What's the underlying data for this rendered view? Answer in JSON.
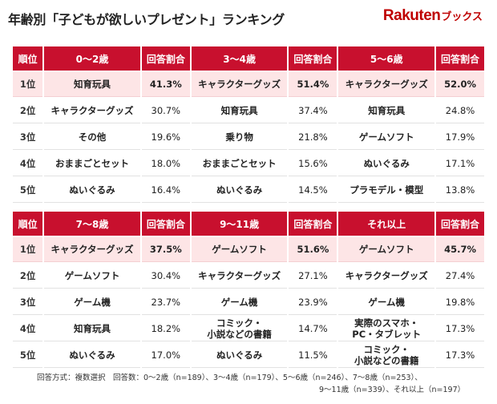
{
  "title": "年齢別「子どもが欲しいプレゼント」ランキング",
  "logo": {
    "brand": "Rakuten",
    "sub": "ブックス"
  },
  "colors": {
    "header_bg": "#c8102e",
    "highlight_row": "#fde5e6",
    "brand": "#bf0000"
  },
  "chart_data": [
    {
      "type": "table",
      "rank_header": "順位",
      "ranks": [
        "1位",
        "2位",
        "3位",
        "4位",
        "5位"
      ],
      "groups": [
        {
          "name": "0〜2歳",
          "share_header": "回答割合",
          "items": [
            {
              "item": "知育玩具",
              "share": "41.3%"
            },
            {
              "item": "キャラクターグッズ",
              "share": "30.7%"
            },
            {
              "item": "その他",
              "share": "19.6%"
            },
            {
              "item": "おままごとセット",
              "share": "18.0%"
            },
            {
              "item": "ぬいぐるみ",
              "share": "16.4%"
            }
          ]
        },
        {
          "name": "3〜4歳",
          "share_header": "回答割合",
          "items": [
            {
              "item": "キャラクターグッズ",
              "share": "51.4%"
            },
            {
              "item": "知育玩具",
              "share": "37.4%"
            },
            {
              "item": "乗り物",
              "share": "21.8%"
            },
            {
              "item": "おままごとセット",
              "share": "15.6%"
            },
            {
              "item": "ぬいぐるみ",
              "share": "14.5%"
            }
          ]
        },
        {
          "name": "5〜6歳",
          "share_header": "回答割合",
          "items": [
            {
              "item": "キャラクターグッズ",
              "share": "52.0%"
            },
            {
              "item": "知育玩具",
              "share": "24.8%"
            },
            {
              "item": "ゲームソフト",
              "share": "17.9%"
            },
            {
              "item": "ぬいぐるみ",
              "share": "17.1%"
            },
            {
              "item": "プラモデル・模型",
              "share": "13.8%"
            }
          ]
        }
      ]
    },
    {
      "type": "table",
      "rank_header": "順位",
      "ranks": [
        "1位",
        "2位",
        "3位",
        "4位",
        "5位"
      ],
      "groups": [
        {
          "name": "7〜8歳",
          "share_header": "回答割合",
          "items": [
            {
              "item": "キャラクターグッズ",
              "share": "37.5%"
            },
            {
              "item": "ゲームソフト",
              "share": "30.4%"
            },
            {
              "item": "ゲーム機",
              "share": "23.7%"
            },
            {
              "item": "知育玩具",
              "share": "18.2%"
            },
            {
              "item": "ぬいぐるみ",
              "share": "17.0%"
            }
          ]
        },
        {
          "name": "9〜11歳",
          "share_header": "回答割合",
          "items": [
            {
              "item": "ゲームソフト",
              "share": "51.6%"
            },
            {
              "item": "キャラクターグッズ",
              "share": "27.1%"
            },
            {
              "item": "ゲーム機",
              "share": "23.9%"
            },
            {
              "item": "コミック・\n小説などの書籍",
              "share": "14.7%"
            },
            {
              "item": "ぬいぐるみ",
              "share": "11.5%"
            }
          ]
        },
        {
          "name": "それ以上",
          "share_header": "回答割合",
          "items": [
            {
              "item": "ゲームソフト",
              "share": "45.7%"
            },
            {
              "item": "キャラクターグッズ",
              "share": "27.4%"
            },
            {
              "item": "ゲーム機",
              "share": "19.8%"
            },
            {
              "item": "実際のスマホ・\nPC・タブレット",
              "share": "17.3%"
            },
            {
              "item": "コミック・\n小説などの書籍",
              "share": "17.3%"
            }
          ]
        }
      ]
    }
  ],
  "footnote": {
    "line1": "回答方式：複数選択　回答数：0〜2歳（n=189）、3〜4歳（n=179）、5〜6歳（n=246）、7〜8歳（n=253）、",
    "line2": "9〜11歳（n=339）、それ以上（n=197）"
  }
}
